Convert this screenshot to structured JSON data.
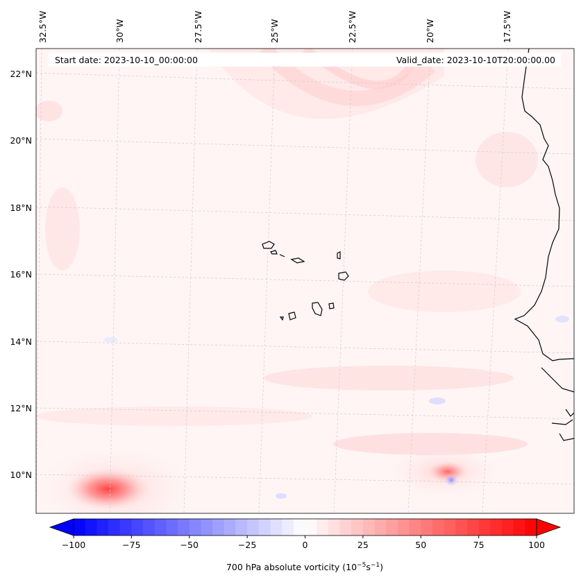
{
  "map": {
    "start_date": "Start date: 2023-10-10_00:00:00",
    "valid_date": "Valid_date: 2023-10-10T20:00:00.00",
    "lon_labels": [
      "32.5°W",
      "30°W",
      "27.5°W",
      "25°W",
      "22.5°W",
      "20°W",
      "17.5°W"
    ],
    "lat_labels": [
      "22°N",
      "20°N",
      "18°N",
      "16°N",
      "14°N",
      "12°N",
      "10°N"
    ],
    "field": "700 hPa absolute vorticity",
    "features": [
      "Cape Verde islands",
      "West African coastline"
    ]
  },
  "colorbar": {
    "label_text": "700 hPa absolute vorticity (10",
    "label_exp1": "−5",
    "label_mid": "s",
    "label_exp2": "−1",
    "label_end": ")",
    "min": -100,
    "max": 100,
    "ticks": [
      "−100",
      "−75",
      "−50",
      "−25",
      "0",
      "25",
      "50",
      "75",
      "100"
    ],
    "colors": {
      "negative": "#0000ff",
      "zero": "#ffffff",
      "positive": "#ff0000"
    }
  }
}
